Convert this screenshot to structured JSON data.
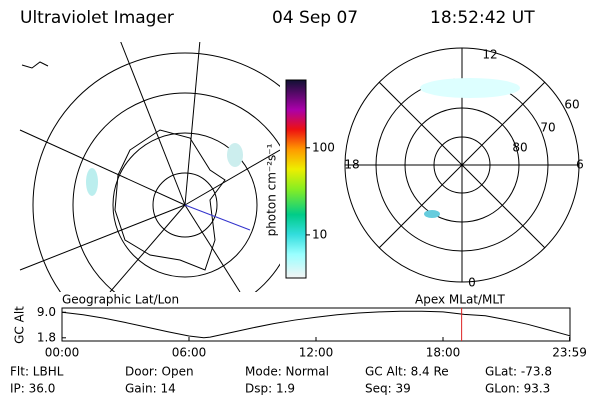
{
  "header": {
    "title": "Ultraviolet Imager",
    "date": "04 Sep 07",
    "time": "18:52:42 UT"
  },
  "colorbar": {
    "label": "photon cm⁻²s⁻¹",
    "lim": [
      3.2,
      600
    ],
    "log": true,
    "ticks": [
      10,
      100
    ]
  },
  "geo_map": {
    "label": "Geographic Lat/Lon"
  },
  "polar_map": {
    "label": "Apex MLat/MLT",
    "mlt_labels": [
      "12",
      "6",
      "0",
      "18"
    ],
    "lat_labels": [
      "60",
      "70",
      "80"
    ]
  },
  "altitude": {
    "ylabel": "GC Alt",
    "ylim": [
      0.9,
      10.2
    ],
    "yticks": [
      1.8,
      {
        "value": 9,
        "label": "9.0"
      }
    ],
    "xlim": [
      0,
      24
    ],
    "xticks": [
      {
        "value": 0,
        "label": "00:00"
      },
      {
        "value": 6,
        "label": "06:00"
      },
      {
        "value": 12,
        "label": "12:00"
      },
      {
        "value": 18,
        "label": "18:00"
      },
      {
        "value": 23.98,
        "label": "23:59"
      }
    ],
    "x": [
      0,
      1,
      2,
      3,
      4,
      5,
      6,
      6.7,
      7,
      8,
      9,
      10,
      11,
      12,
      13,
      14,
      15,
      16,
      17,
      18,
      19,
      20,
      21,
      22,
      23,
      23.98
    ],
    "values": [
      9.0,
      8.3,
      7.3,
      6.1,
      4.8,
      3.5,
      2.3,
      1.8,
      2.0,
      3.3,
      4.6,
      5.8,
      6.8,
      7.6,
      8.3,
      8.8,
      9.1,
      9.3,
      9.3,
      9.1,
      8.4,
      8.0,
      6.9,
      5.6,
      4.0,
      2.4
    ],
    "marker": 18.88
  },
  "status": [
    [
      "Flt: LBHL",
      "Door: Open",
      "Mode: Normal",
      "GC Alt: 8.4 Re",
      "GLat: -73.8"
    ],
    [
      "IP: 36.0",
      "Gain: 14",
      "Dsp:    1.9",
      "Seq: 39",
      "GLon:  93.3"
    ]
  ]
}
